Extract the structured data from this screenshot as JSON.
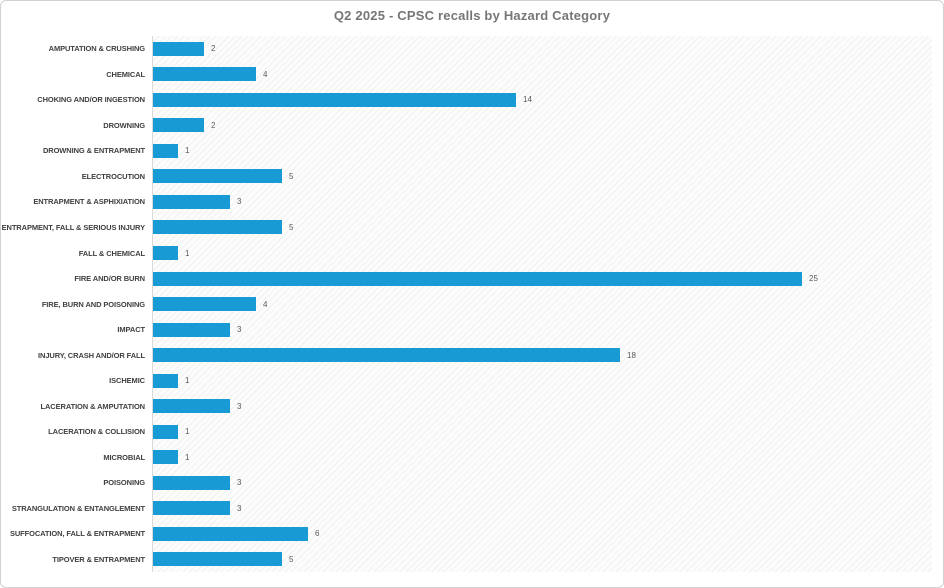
{
  "title": "Q2 2025 - CPSC recalls by Hazard Category",
  "colors": {
    "bar": "#189bd5",
    "title_text": "#767676",
    "category_label_text": "#3f3f3f",
    "value_label_text": "#595959",
    "axis_line": "#d9d9d9",
    "frame_border": "#d2d2d2"
  },
  "chart_data": {
    "type": "bar",
    "orientation": "horizontal",
    "title": "Q2 2025 - CPSC recalls by Hazard Category",
    "categories": [
      "AMPUTATION & CRUSHING",
      "CHEMICAL",
      "CHOKING AND/OR INGESTION",
      "DROWNING",
      "DROWNING & ENTRAPMENT",
      "ELECTROCUTION",
      "ENTRAPMENT & ASPHIXIATION",
      "ENTRAPMENT, FALL & SERIOUS INJURY",
      "FALL & CHEMICAL",
      "FIRE AND/OR BURN",
      "FIRE, BURN AND POISONING",
      "IMPACT",
      "INJURY, CRASH AND/OR FALL",
      "ISCHEMIC",
      "LACERATION & AMPUTATION",
      "LACERATION & COLLISION",
      "MICROBIAL",
      "POISONING",
      "STRANGULATION & ENTANGLEMENT",
      "SUFFOCATION, FALL & ENTRAPMENT",
      "TIPOVER & ENTRAPMENT"
    ],
    "values": [
      2,
      4,
      14,
      2,
      1,
      5,
      3,
      5,
      1,
      25,
      4,
      3,
      18,
      1,
      3,
      1,
      1,
      3,
      3,
      6,
      5
    ],
    "xlabel": "",
    "ylabel": "",
    "xlim": [
      0,
      30
    ],
    "grid": false,
    "legend": false,
    "data_labels": true
  }
}
